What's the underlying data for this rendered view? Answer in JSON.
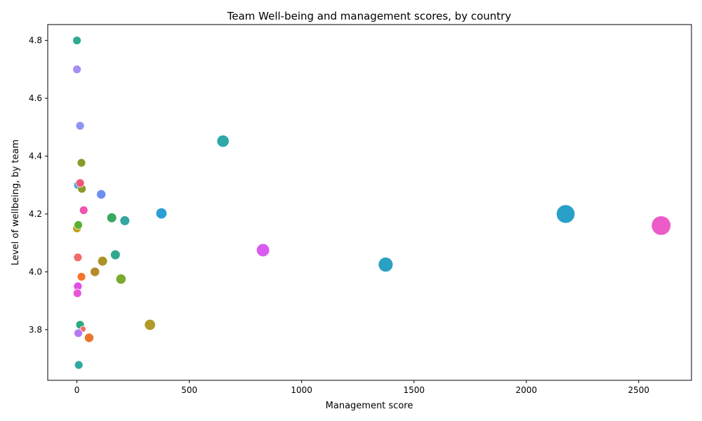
{
  "chart_data": {
    "type": "scatter",
    "title": "Team Well-being and management scores, by country",
    "xlabel": "Management score",
    "ylabel": "Level of wellbeing, by team",
    "xlim": [
      -130,
      2735
    ],
    "ylim": [
      3.625,
      4.855
    ],
    "xticks": [
      0,
      500,
      1000,
      1500,
      2000,
      2500
    ],
    "xtick_labels": [
      "0",
      "500",
      "1000",
      "1500",
      "2000",
      "2500"
    ],
    "yticks": [
      3.8,
      4.0,
      4.2,
      4.4,
      4.6,
      4.8
    ],
    "ytick_labels": [
      "3.8",
      "4.0",
      "4.2",
      "4.4",
      "4.6",
      "4.8"
    ],
    "grid": false,
    "legend": "none",
    "points": [
      {
        "x": 0,
        "y": 4.8,
        "color": "#2eaa8e",
        "size": 1
      },
      {
        "x": 0,
        "y": 4.7,
        "color": "#a68ef2",
        "size": 1
      },
      {
        "x": 14,
        "y": 4.505,
        "color": "#8e94f2",
        "size": 1
      },
      {
        "x": 20,
        "y": 4.377,
        "color": "#8a9a2a",
        "size": 1
      },
      {
        "x": 5,
        "y": 4.3,
        "color": "#36a4d6",
        "size": 1
      },
      {
        "x": 22,
        "y": 4.287,
        "color": "#8a9a2a",
        "size": 1
      },
      {
        "x": 14,
        "y": 4.307,
        "color": "#f2577a",
        "size": 1
      },
      {
        "x": 108,
        "y": 4.268,
        "color": "#6e8ef2",
        "size": 1.1
      },
      {
        "x": 30,
        "y": 4.213,
        "color": "#f055b0",
        "size": 1
      },
      {
        "x": 155,
        "y": 4.187,
        "color": "#37a860",
        "size": 1.15
      },
      {
        "x": 213,
        "y": 4.177,
        "color": "#33a7a0",
        "size": 1.15
      },
      {
        "x": 376,
        "y": 4.202,
        "color": "#2a9fd6",
        "size": 1.3
      },
      {
        "x": 650,
        "y": 4.452,
        "color": "#2ea9a8",
        "size": 1.45
      },
      {
        "x": 0,
        "y": 4.15,
        "color": "#c7a015",
        "size": 1
      },
      {
        "x": 6,
        "y": 4.162,
        "color": "#5ab02e",
        "size": 1
      },
      {
        "x": 2175,
        "y": 4.2,
        "color": "#2aa0c8",
        "size": 2.2
      },
      {
        "x": 2600,
        "y": 4.16,
        "color": "#ec5bc7",
        "size": 2.3
      },
      {
        "x": 4,
        "y": 4.05,
        "color": "#f26a6a",
        "size": 1
      },
      {
        "x": 171,
        "y": 4.059,
        "color": "#2ea98e",
        "size": 1.15
      },
      {
        "x": 114,
        "y": 4.037,
        "color": "#aa9225",
        "size": 1.15
      },
      {
        "x": 828,
        "y": 4.075,
        "color": "#d85cf0",
        "size": 1.55
      },
      {
        "x": 80,
        "y": 4.0,
        "color": "#b48a2a",
        "size": 1.1
      },
      {
        "x": 1374,
        "y": 4.025,
        "color": "#2aa0c2",
        "size": 1.75
      },
      {
        "x": 20,
        "y": 3.983,
        "color": "#f5742a",
        "size": 1
      },
      {
        "x": 196,
        "y": 3.975,
        "color": "#7aaa30",
        "size": 1.2
      },
      {
        "x": 4,
        "y": 3.95,
        "color": "#e04ee8",
        "size": 1
      },
      {
        "x": 2,
        "y": 3.926,
        "color": "#e855d8",
        "size": 1
      },
      {
        "x": 325,
        "y": 3.817,
        "color": "#b09a2a",
        "size": 1.3
      },
      {
        "x": 14,
        "y": 3.817,
        "color": "#2eaa80",
        "size": 1
      },
      {
        "x": 27,
        "y": 3.802,
        "color": "#f26a6a",
        "size": 0.7
      },
      {
        "x": 6,
        "y": 3.788,
        "color": "#b57af2",
        "size": 1
      },
      {
        "x": 54,
        "y": 3.772,
        "color": "#e8752a",
        "size": 1.1
      },
      {
        "x": 8,
        "y": 3.678,
        "color": "#2eaaa0",
        "size": 1
      }
    ]
  }
}
